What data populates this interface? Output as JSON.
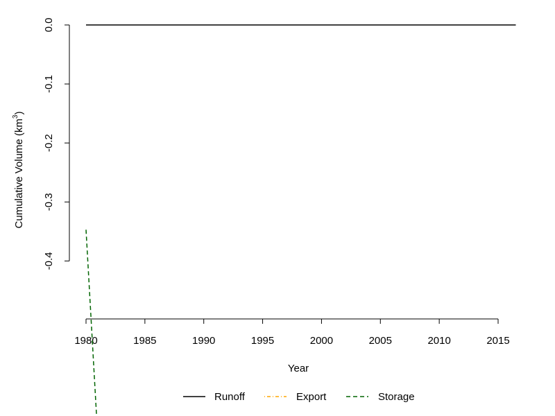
{
  "chart_data": {
    "type": "line",
    "title": "",
    "xlabel": "Year",
    "ylabel_main": "Cumulative Volume  (km",
    "ylabel_sup": "3",
    "ylabel_close": ")",
    "xlim": [
      1980,
      2015
    ],
    "ylim": [
      -0.5,
      0.0
    ],
    "x_ticks": [
      1980,
      1985,
      1990,
      1995,
      2000,
      2005,
      2010,
      2015
    ],
    "x_tick_labels": [
      "1980",
      "1985",
      "1990",
      "1995",
      "2000",
      "2005",
      "2010",
      "2015"
    ],
    "y_ticks": [
      0.0,
      -0.1,
      -0.2,
      -0.3,
      -0.4
    ],
    "y_tick_labels": [
      "0.0",
      "-0.1",
      "-0.2",
      "-0.3",
      "-0.4"
    ],
    "grid": false,
    "legend_position": "bottom",
    "series": [
      {
        "name": "Runoff",
        "color": "#000000",
        "dash": "solid",
        "x": [
          1980,
          2016.5
        ],
        "y": [
          0.0,
          0.0
        ]
      },
      {
        "name": "Export",
        "color": "#FFA500",
        "dash": "dotdash",
        "x": [],
        "y": []
      },
      {
        "name": "Storage",
        "color": "#006400",
        "dash": "dashed",
        "x": [
          1980,
          1980.9
        ],
        "y": [
          -0.347,
          -0.665
        ]
      }
    ]
  }
}
